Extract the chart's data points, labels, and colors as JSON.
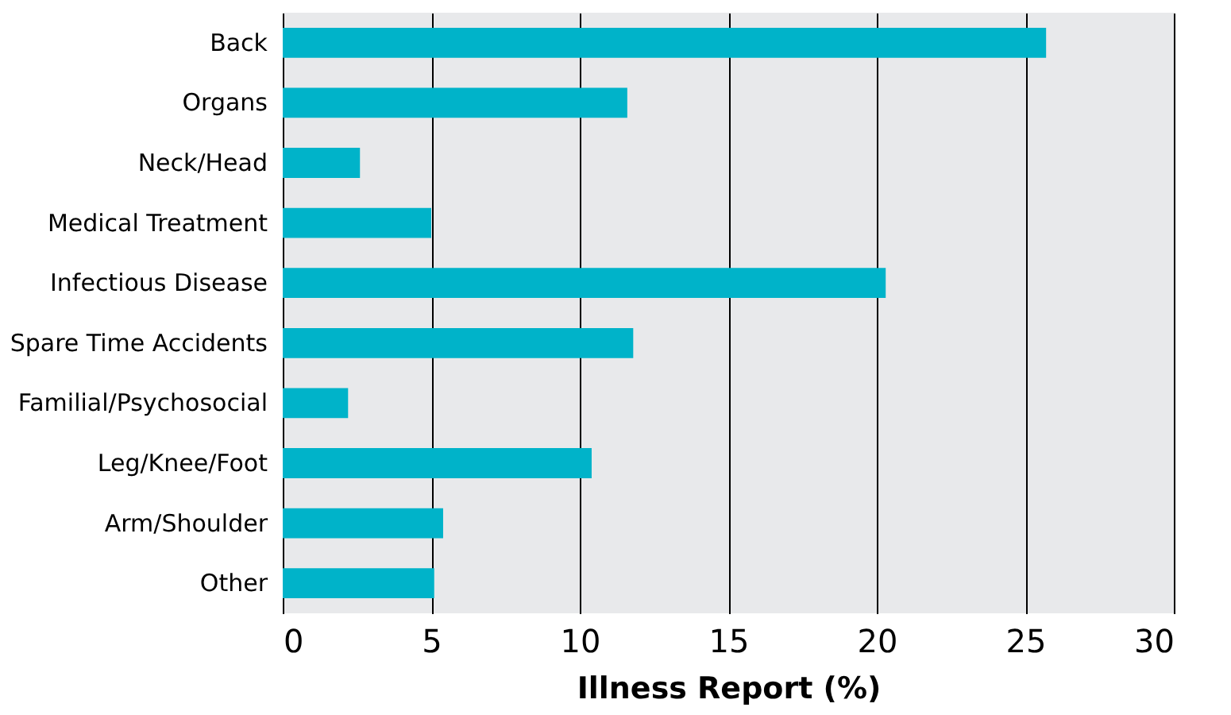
{
  "chart_data": {
    "type": "bar",
    "orientation": "horizontal",
    "xlabel": "Illness Report (%)",
    "categories": [
      "Back",
      "Organs",
      "Neck/Head",
      "Medical Treatment",
      "Infectious Disease",
      "Spare Time Accidents",
      "Familial/Psychosocial",
      "Leg/Knee/Foot",
      "Arm/Shoulder",
      "Other"
    ],
    "values": [
      25.7,
      11.6,
      2.6,
      5.0,
      20.3,
      11.8,
      2.2,
      10.4,
      5.4,
      5.1
    ],
    "color": "#00b3c9",
    "xlim": [
      0,
      30
    ],
    "xticks": [
      0,
      5,
      10,
      15,
      20,
      25,
      30
    ],
    "grid": "x"
  }
}
